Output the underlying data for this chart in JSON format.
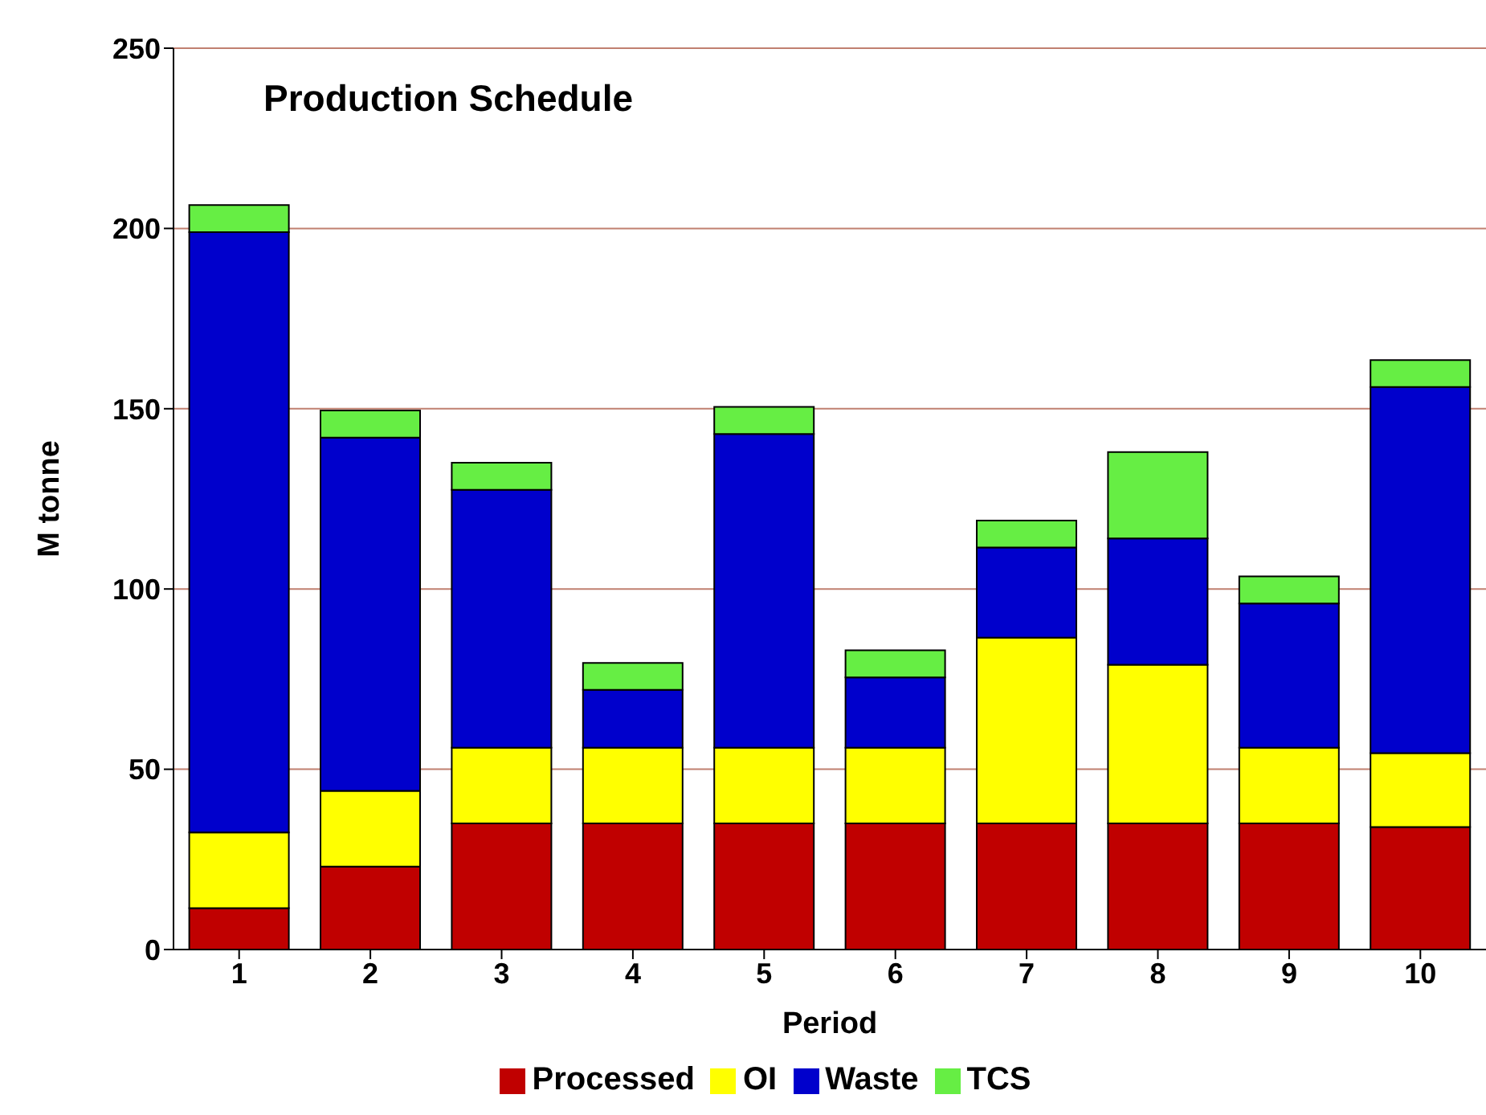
{
  "chart_data": {
    "type": "bar",
    "title": "Production Schedule",
    "xlabel": "Period",
    "ylabel": "M tonne",
    "categories": [
      "1",
      "2",
      "3",
      "4",
      "5",
      "6",
      "7",
      "8",
      "9",
      "10"
    ],
    "stacked": true,
    "ylim": [
      0,
      250
    ],
    "yticks": [
      0,
      50,
      100,
      150,
      200,
      250
    ],
    "grid": "y",
    "legend": "bottom",
    "series": [
      {
        "name": "Processed",
        "color": "#c00000",
        "values": [
          11.5,
          23,
          35,
          35,
          35,
          35,
          35,
          35,
          35,
          34
        ]
      },
      {
        "name": "OI",
        "color": "#ffff00",
        "values": [
          21,
          21,
          21,
          21,
          21,
          21,
          51.5,
          44,
          21,
          20.5
        ]
      },
      {
        "name": "Waste",
        "color": "#0000cc",
        "values": [
          166.5,
          98,
          71.5,
          16,
          87,
          19.5,
          25,
          35,
          40,
          101.5
        ]
      },
      {
        "name": "TCS",
        "color": "#66ee44",
        "values": [
          7.5,
          7.5,
          7.5,
          7.5,
          7.5,
          7.5,
          7.5,
          24,
          7.5,
          7.5
        ]
      }
    ]
  }
}
